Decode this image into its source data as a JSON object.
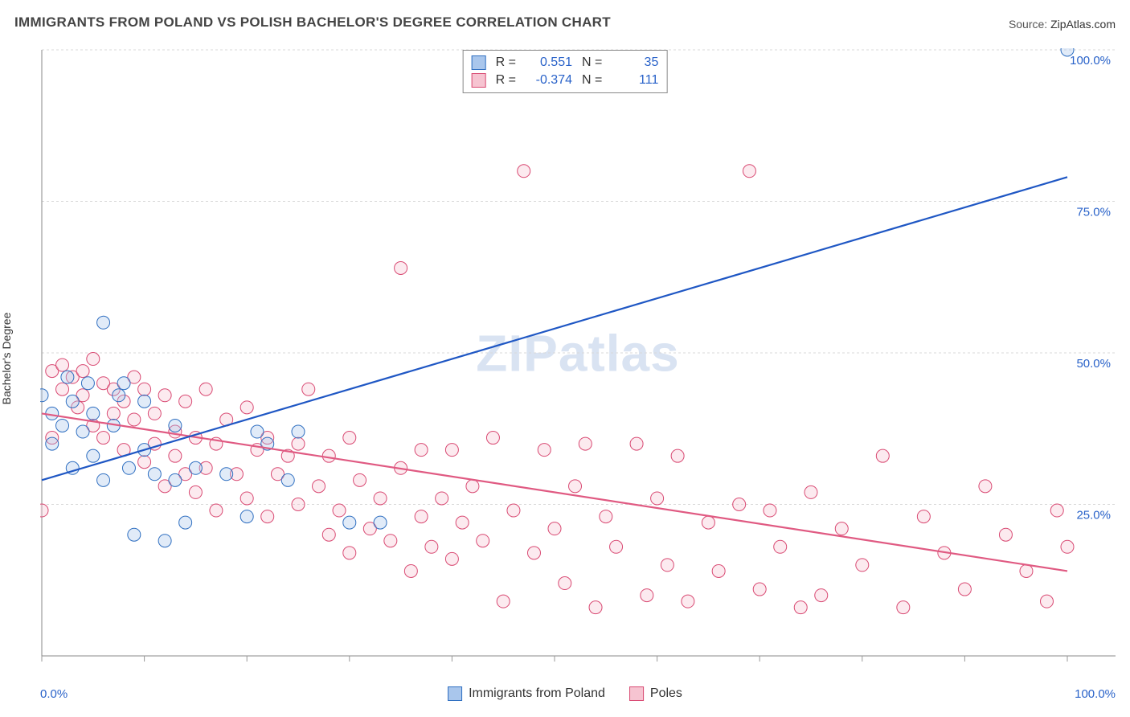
{
  "title": "IMMIGRANTS FROM POLAND VS POLISH BACHELOR'S DEGREE CORRELATION CHART",
  "source_label": "Source: ",
  "source_value": "ZipAtlas.com",
  "ylabel": "Bachelor's Degree",
  "watermark": "ZIPatlas",
  "colors": {
    "series_a_fill": "#a9c6ec",
    "series_a_stroke": "#2f6fc1",
    "series_b_fill": "#f6c4d1",
    "series_b_stroke": "#d94a73",
    "trend_a": "#1f57c4",
    "trend_b": "#e05a82",
    "grid": "#d9d9d9",
    "axis": "#888888",
    "tick_text": "#2962c9",
    "background": "#ffffff",
    "watermark": "#d9e3f2"
  },
  "chart": {
    "type": "scatter",
    "xlim": [
      0,
      100
    ],
    "ylim": [
      0,
      100
    ],
    "ygrid_values": [
      25,
      50,
      75,
      100
    ],
    "ytick_labels": [
      "25.0%",
      "50.0%",
      "75.0%",
      "100.0%"
    ],
    "xtick_positions": [
      0,
      10,
      20,
      30,
      40,
      50,
      60,
      70,
      80,
      90,
      100
    ],
    "xlabel_min": "0.0%",
    "xlabel_max": "100.0%",
    "marker_radius": 8,
    "marker_fill_opacity": 0.35,
    "marker_stroke_width": 1,
    "trend_width": 2.2
  },
  "legend_top": {
    "r_label": "R =",
    "n_label": "N =",
    "rows": [
      {
        "swatch_fill": "#a9c6ec",
        "swatch_stroke": "#2f6fc1",
        "r": "0.551",
        "n": "35"
      },
      {
        "swatch_fill": "#f6c4d1",
        "swatch_stroke": "#d94a73",
        "r": "-0.374",
        "n": "111"
      }
    ]
  },
  "legend_bottom": {
    "items": [
      {
        "swatch_fill": "#a9c6ec",
        "swatch_stroke": "#2f6fc1",
        "label": "Immigrants from Poland"
      },
      {
        "swatch_fill": "#f6c4d1",
        "swatch_stroke": "#d94a73",
        "label": "Poles"
      }
    ]
  },
  "series_a": {
    "name": "Immigrants from Poland",
    "trend": {
      "y_at_x0": 29,
      "y_at_x100": 79
    },
    "points": [
      [
        0,
        43
      ],
      [
        1,
        40
      ],
      [
        1,
        35
      ],
      [
        2,
        38
      ],
      [
        2.5,
        46
      ],
      [
        3,
        42
      ],
      [
        3,
        31
      ],
      [
        4,
        37
      ],
      [
        4.5,
        45
      ],
      [
        5,
        40
      ],
      [
        5,
        33
      ],
      [
        6,
        55
      ],
      [
        6,
        29
      ],
      [
        7,
        38
      ],
      [
        7.5,
        43
      ],
      [
        8,
        45
      ],
      [
        8.5,
        31
      ],
      [
        9,
        20
      ],
      [
        10,
        42
      ],
      [
        10,
        34
      ],
      [
        11,
        30
      ],
      [
        12,
        19
      ],
      [
        13,
        38
      ],
      [
        13,
        29
      ],
      [
        14,
        22
      ],
      [
        15,
        31
      ],
      [
        18,
        30
      ],
      [
        20,
        23
      ],
      [
        21,
        37
      ],
      [
        22,
        35
      ],
      [
        24,
        29
      ],
      [
        25,
        37
      ],
      [
        30,
        22
      ],
      [
        33,
        22
      ],
      [
        100,
        100
      ]
    ]
  },
  "series_b": {
    "name": "Poles",
    "trend": {
      "y_at_x0": 40,
      "y_at_x100": 14
    },
    "points": [
      [
        0,
        24
      ],
      [
        1,
        36
      ],
      [
        1,
        47
      ],
      [
        2,
        44
      ],
      [
        2,
        48
      ],
      [
        3,
        46
      ],
      [
        3.5,
        41
      ],
      [
        4,
        47
      ],
      [
        4,
        43
      ],
      [
        5,
        49
      ],
      [
        5,
        38
      ],
      [
        6,
        45
      ],
      [
        6,
        36
      ],
      [
        7,
        44
      ],
      [
        7,
        40
      ],
      [
        8,
        42
      ],
      [
        8,
        34
      ],
      [
        9,
        46
      ],
      [
        9,
        39
      ],
      [
        10,
        44
      ],
      [
        10,
        32
      ],
      [
        11,
        40
      ],
      [
        11,
        35
      ],
      [
        12,
        43
      ],
      [
        12,
        28
      ],
      [
        13,
        37
      ],
      [
        13,
        33
      ],
      [
        14,
        42
      ],
      [
        14,
        30
      ],
      [
        15,
        36
      ],
      [
        15,
        27
      ],
      [
        16,
        44
      ],
      [
        16,
        31
      ],
      [
        17,
        35
      ],
      [
        17,
        24
      ],
      [
        18,
        39
      ],
      [
        19,
        30
      ],
      [
        20,
        41
      ],
      [
        20,
        26
      ],
      [
        21,
        34
      ],
      [
        22,
        36
      ],
      [
        22,
        23
      ],
      [
        23,
        30
      ],
      [
        24,
        33
      ],
      [
        25,
        25
      ],
      [
        25,
        35
      ],
      [
        26,
        44
      ],
      [
        27,
        28
      ],
      [
        28,
        20
      ],
      [
        28,
        33
      ],
      [
        29,
        24
      ],
      [
        30,
        36
      ],
      [
        30,
        17
      ],
      [
        31,
        29
      ],
      [
        32,
        21
      ],
      [
        33,
        26
      ],
      [
        34,
        19
      ],
      [
        35,
        64
      ],
      [
        35,
        31
      ],
      [
        36,
        14
      ],
      [
        37,
        23
      ],
      [
        37,
        34
      ],
      [
        38,
        18
      ],
      [
        39,
        26
      ],
      [
        40,
        34
      ],
      [
        40,
        16
      ],
      [
        41,
        22
      ],
      [
        42,
        28
      ],
      [
        43,
        19
      ],
      [
        44,
        36
      ],
      [
        45,
        9
      ],
      [
        46,
        24
      ],
      [
        47,
        80
      ],
      [
        48,
        17
      ],
      [
        49,
        34
      ],
      [
        50,
        21
      ],
      [
        51,
        12
      ],
      [
        52,
        28
      ],
      [
        53,
        35
      ],
      [
        54,
        8
      ],
      [
        55,
        23
      ],
      [
        56,
        18
      ],
      [
        58,
        35
      ],
      [
        59,
        10
      ],
      [
        60,
        26
      ],
      [
        61,
        15
      ],
      [
        62,
        33
      ],
      [
        63,
        9
      ],
      [
        65,
        22
      ],
      [
        66,
        14
      ],
      [
        68,
        25
      ],
      [
        69,
        80
      ],
      [
        70,
        11
      ],
      [
        71,
        24
      ],
      [
        72,
        18
      ],
      [
        74,
        8
      ],
      [
        75,
        27
      ],
      [
        76,
        10
      ],
      [
        78,
        21
      ],
      [
        80,
        15
      ],
      [
        82,
        33
      ],
      [
        84,
        8
      ],
      [
        86,
        23
      ],
      [
        88,
        17
      ],
      [
        90,
        11
      ],
      [
        92,
        28
      ],
      [
        94,
        20
      ],
      [
        96,
        14
      ],
      [
        98,
        9
      ],
      [
        99,
        24
      ],
      [
        100,
        18
      ]
    ]
  }
}
